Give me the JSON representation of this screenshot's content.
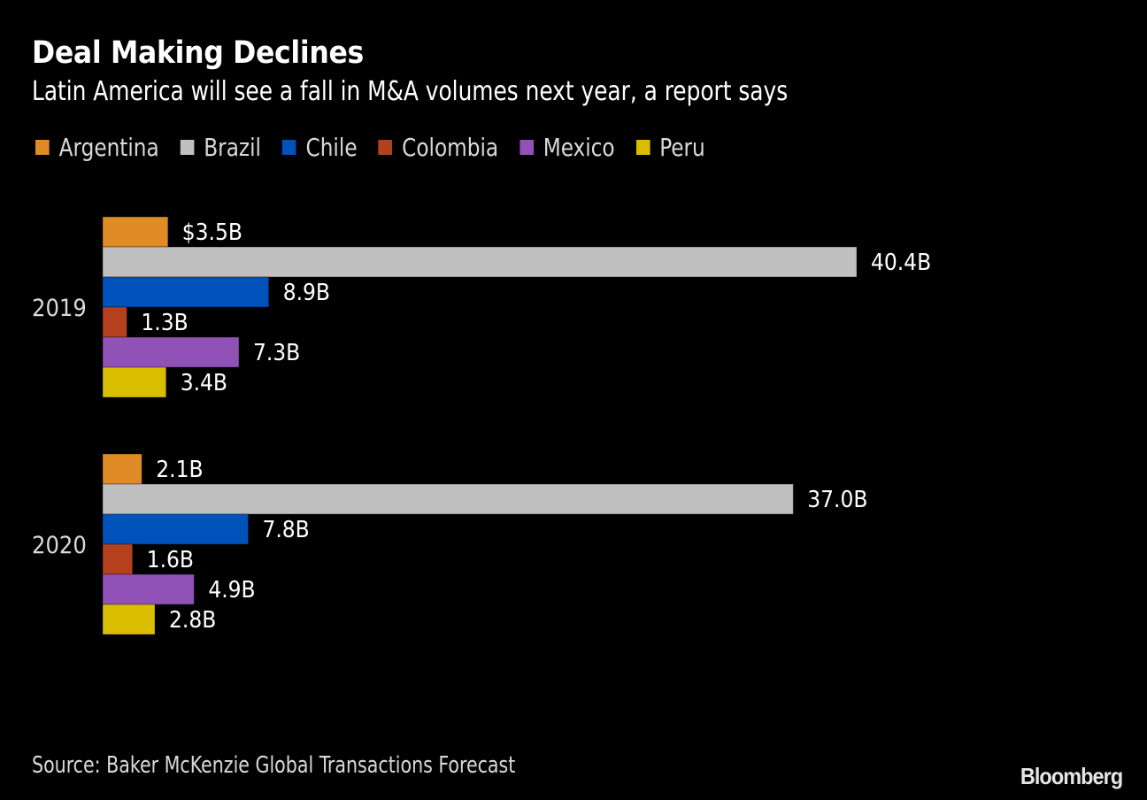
{
  "header": {
    "title": "Deal Making Declines",
    "subtitle": "Latin America will see a fall in M&A volumes next year, a report says"
  },
  "footer": {
    "source": "Source: Baker McKenzie Global Transactions Forecast",
    "logo": "Bloomberg"
  },
  "chart_data": {
    "type": "bar",
    "orientation": "horizontal",
    "title": "Deal Making Declines",
    "subtitle": "Latin America will see a fall in M&A volumes next year, a report says",
    "xlabel": "",
    "ylabel": "",
    "unit": "USD billions",
    "categories": [
      "2019",
      "2020"
    ],
    "series": [
      {
        "name": "Argentina",
        "color": "#df8c26",
        "values": [
          3.5,
          2.1
        ],
        "labels": [
          "$3.5B",
          "2.1B"
        ]
      },
      {
        "name": "Brazil",
        "color": "#c0c0c0",
        "values": [
          40.4,
          37.0
        ],
        "labels": [
          "40.4B",
          "37.0B"
        ]
      },
      {
        "name": "Chile",
        "color": "#0052bb",
        "values": [
          8.9,
          7.8
        ],
        "labels": [
          "8.9B",
          "7.8B"
        ]
      },
      {
        "name": "Colombia",
        "color": "#b5401e",
        "values": [
          1.3,
          1.6
        ],
        "labels": [
          "1.3B",
          "1.6B"
        ]
      },
      {
        "name": "Mexico",
        "color": "#9152b8",
        "values": [
          7.3,
          4.9
        ],
        "labels": [
          "7.3B",
          "4.9B"
        ]
      },
      {
        "name": "Peru",
        "color": "#d9bd00",
        "values": [
          3.4,
          2.8
        ],
        "labels": [
          "3.4B",
          "2.8B"
        ]
      }
    ],
    "xlim": [
      0,
      40.4
    ],
    "grid": false,
    "axis_ticks_visible": false,
    "legend_position": "top-left",
    "background": "#000000",
    "source": "Source: Baker McKenzie Global Transactions Forecast"
  }
}
